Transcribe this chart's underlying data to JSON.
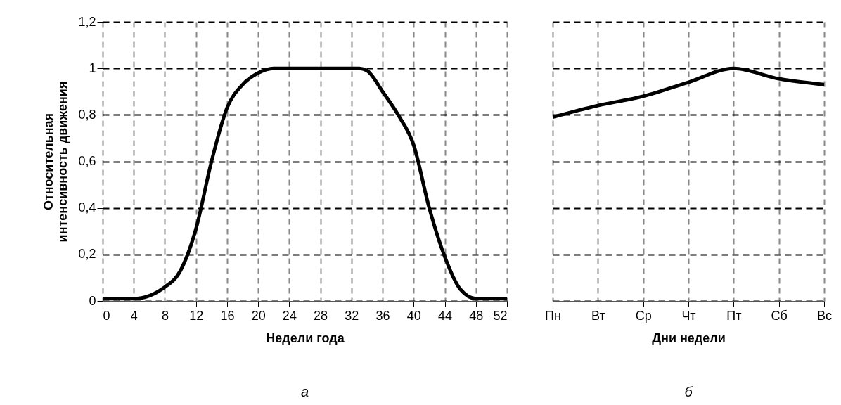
{
  "chart_data": [
    {
      "type": "line",
      "xlabel": "Недели года",
      "ylabel": "Относительная\nинтенсивность движения",
      "annotations": [
        "а"
      ],
      "x": [
        0,
        4,
        8,
        10,
        12,
        14,
        16,
        18,
        20,
        22,
        33,
        34,
        36,
        38,
        40,
        42,
        44,
        46,
        48,
        52
      ],
      "series": [
        {
          "color": "#000000",
          "values": [
            0.01,
            0.01,
            0.06,
            0.13,
            0.31,
            0.6,
            0.83,
            0.93,
            0.98,
            1.0,
            1.0,
            0.99,
            0.9,
            0.8,
            0.67,
            0.4,
            0.19,
            0.05,
            0.01,
            0.01
          ]
        }
      ],
      "xlim": [
        0,
        52
      ],
      "xticks": [
        0,
        4,
        8,
        12,
        16,
        20,
        24,
        28,
        32,
        36,
        40,
        44,
        48,
        52
      ],
      "ylim": [
        0,
        1.2
      ],
      "yticks": [
        0,
        {
          "value": 0.2,
          "label": "0,2"
        },
        {
          "value": 0.4,
          "label": "0,4"
        },
        {
          "value": 0.6,
          "label": "0,6"
        },
        {
          "value": 0.8,
          "label": "0,8"
        },
        1,
        {
          "value": 1.2,
          "label": "1,2"
        }
      ],
      "grid": true,
      "line_style": "solid"
    },
    {
      "type": "line",
      "xlabel": "Дни недели",
      "annotations": [
        "б"
      ],
      "categories": [
        "Пн",
        "Вт",
        "Ср",
        "Чт",
        "Пт",
        "Сб",
        "Вс"
      ],
      "series": [
        {
          "color": "#000000",
          "values": [
            0.79,
            0.84,
            0.88,
            0.94,
            1.0,
            0.955,
            0.93
          ]
        }
      ],
      "ylim": [
        0,
        1.2
      ],
      "yticks": [
        0,
        0.2,
        0.4,
        0.6,
        0.8,
        1,
        1.2
      ],
      "grid": true,
      "line_style": "solid",
      "tick_labels": "x"
    }
  ]
}
